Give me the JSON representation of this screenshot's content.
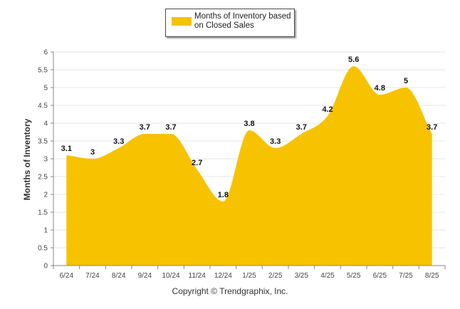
{
  "colors": {
    "series": "#F7C200",
    "grid": "#e6e6e6",
    "axis": "#555555",
    "label": "#222222"
  },
  "legend": {
    "label": "Months of Inventory based on Closed Sales"
  },
  "footer": {
    "text": "Copyright © Trendgraphix, Inc."
  },
  "chart_data": {
    "type": "area",
    "categories": [
      "6/24",
      "7/24",
      "8/24",
      "9/24",
      "10/24",
      "11/24",
      "12/24",
      "1/25",
      "2/25",
      "3/25",
      "4/25",
      "5/25",
      "6/25",
      "7/25",
      "8/25"
    ],
    "series": [
      {
        "name": "Months of Inventory based on Closed Sales",
        "values": [
          3.1,
          3,
          3.3,
          3.7,
          3.7,
          2.7,
          1.8,
          3.8,
          3.3,
          3.7,
          4.2,
          5.6,
          4.8,
          5,
          3.7
        ]
      }
    ],
    "ylabel": "Months of Inventory",
    "ylim": [
      0,
      6
    ],
    "yticks": [
      0,
      0.5,
      1,
      1.5,
      2,
      2.5,
      3,
      3.5,
      4,
      4.5,
      5,
      5.5,
      6
    ],
    "grid": true,
    "legend_position": "top-center"
  }
}
